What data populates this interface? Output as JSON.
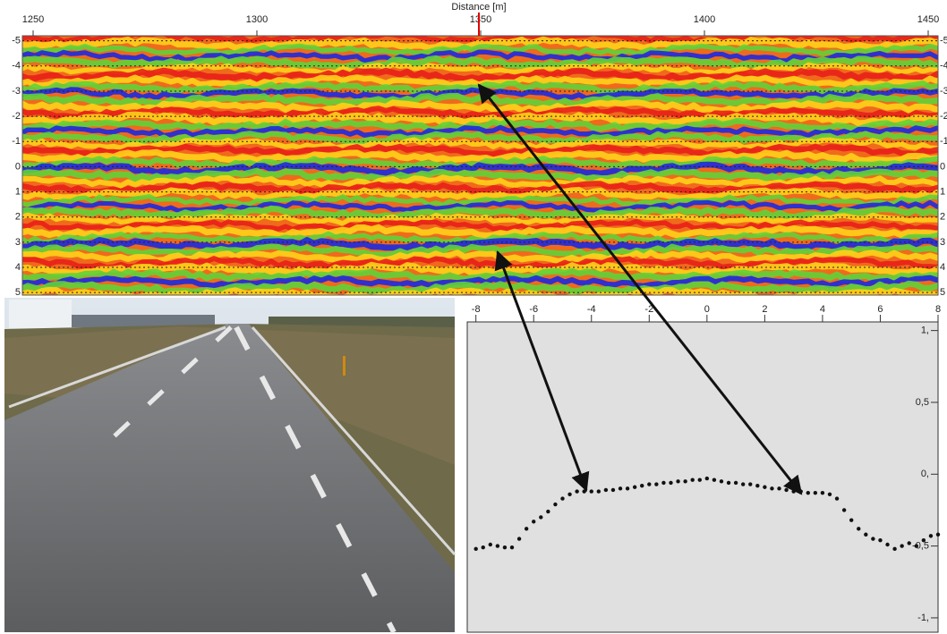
{
  "chart_data": [
    {
      "type": "heatmap",
      "xlabel": "Distance [m]",
      "xlim": [
        1247.6,
        1452.2
      ],
      "xticks": [
        1250,
        1300,
        1350,
        1400,
        1450
      ],
      "ylim": [
        -5.2,
        5.1
      ],
      "yticks": [
        -5,
        -4,
        -3,
        -2,
        -1,
        0,
        1,
        2,
        3,
        4,
        5
      ],
      "cursor": 1349.6,
      "cursor_color": "#e00000",
      "grid": true
    },
    {
      "type": "scatter",
      "color": "#111111",
      "xlim": [
        -8.3,
        8
      ],
      "xticks": [
        -8,
        -6,
        -4,
        -2,
        0,
        2,
        4,
        6,
        8
      ],
      "ylim": [
        -1.1,
        1.06
      ],
      "yticks": [
        {
          "value": 1,
          "label": "1,"
        },
        {
          "value": 0.5,
          "label": "0,5"
        },
        {
          "value": 0,
          "label": "0,"
        },
        {
          "value": -0.5,
          "label": "-0,5"
        },
        {
          "value": -1,
          "label": "-1,"
        }
      ],
      "x": [
        -8,
        -7.75,
        -7.5,
        -7.25,
        -7,
        -6.75,
        -6.5,
        -6.25,
        -6,
        -5.75,
        -5.5,
        -5.25,
        -5,
        -4.75,
        -4.5,
        -4.25,
        -4,
        -3.75,
        -3.5,
        -3.25,
        -3,
        -2.75,
        -2.5,
        -2.25,
        -2,
        -1.75,
        -1.5,
        -1.25,
        -1,
        -0.75,
        -0.5,
        -0.25,
        0,
        0.25,
        0.5,
        0.75,
        1,
        1.25,
        1.5,
        1.75,
        2,
        2.25,
        2.5,
        2.75,
        3,
        3.25,
        3.5,
        3.75,
        4,
        4.25,
        4.5,
        4.75,
        5,
        5.25,
        5.5,
        5.75,
        6,
        6.25,
        6.5,
        6.75,
        7,
        7.25,
        7.5,
        7.75,
        8
      ],
      "values": [
        -0.52,
        -0.51,
        -0.49,
        -0.5,
        -0.51,
        -0.51,
        -0.45,
        -0.38,
        -0.33,
        -0.3,
        -0.26,
        -0.21,
        -0.17,
        -0.14,
        -0.12,
        -0.12,
        -0.12,
        -0.12,
        -0.11,
        -0.11,
        -0.1,
        -0.1,
        -0.09,
        -0.08,
        -0.07,
        -0.07,
        -0.06,
        -0.06,
        -0.05,
        -0.05,
        -0.04,
        -0.04,
        -0.03,
        -0.04,
        -0.05,
        -0.06,
        -0.06,
        -0.07,
        -0.07,
        -0.08,
        -0.09,
        -0.1,
        -0.1,
        -0.11,
        -0.12,
        -0.12,
        -0.13,
        -0.13,
        -0.13,
        -0.14,
        -0.17,
        -0.25,
        -0.32,
        -0.38,
        -0.42,
        -0.45,
        -0.46,
        -0.49,
        -0.52,
        -0.5,
        -0.48,
        -0.5,
        -0.46,
        -0.43,
        -0.42
      ]
    }
  ]
}
